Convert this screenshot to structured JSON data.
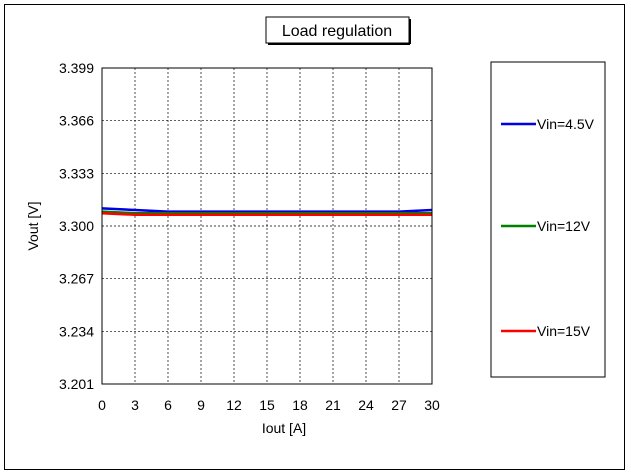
{
  "chart_data": {
    "type": "line",
    "title": "Load regulation",
    "xlabel": "Iout [A]",
    "ylabel": "Vout [V]",
    "xlim": [
      0,
      30
    ],
    "ylim": [
      3.201,
      3.399
    ],
    "xticks": [
      "0",
      "3",
      "6",
      "9",
      "12",
      "15",
      "18",
      "21",
      "24",
      "27",
      "30"
    ],
    "yticks": [
      "3.399",
      "3.366",
      "3.333",
      "3.300",
      "3.267",
      "3.234",
      "3.201"
    ],
    "grid": true,
    "legend_position": "right",
    "series": [
      {
        "name": "Vin=4.5V",
        "color": "#0000e6",
        "x": [
          0,
          3,
          6,
          9,
          12,
          15,
          18,
          21,
          24,
          27,
          30
        ],
        "y": [
          3.311,
          3.31,
          3.309,
          3.309,
          3.309,
          3.309,
          3.309,
          3.309,
          3.309,
          3.309,
          3.31
        ]
      },
      {
        "name": "Vin=12V",
        "color": "#008000",
        "x": [
          0,
          3,
          6,
          9,
          12,
          15,
          18,
          21,
          24,
          27,
          30
        ],
        "y": [
          3.309,
          3.308,
          3.308,
          3.308,
          3.308,
          3.308,
          3.308,
          3.308,
          3.308,
          3.308,
          3.308
        ]
      },
      {
        "name": "Vin=15V",
        "color": "#ff0000",
        "x": [
          0,
          3,
          6,
          9,
          12,
          15,
          18,
          21,
          24,
          27,
          30
        ],
        "y": [
          3.308,
          3.307,
          3.307,
          3.307,
          3.307,
          3.307,
          3.307,
          3.307,
          3.307,
          3.307,
          3.307
        ]
      }
    ]
  }
}
